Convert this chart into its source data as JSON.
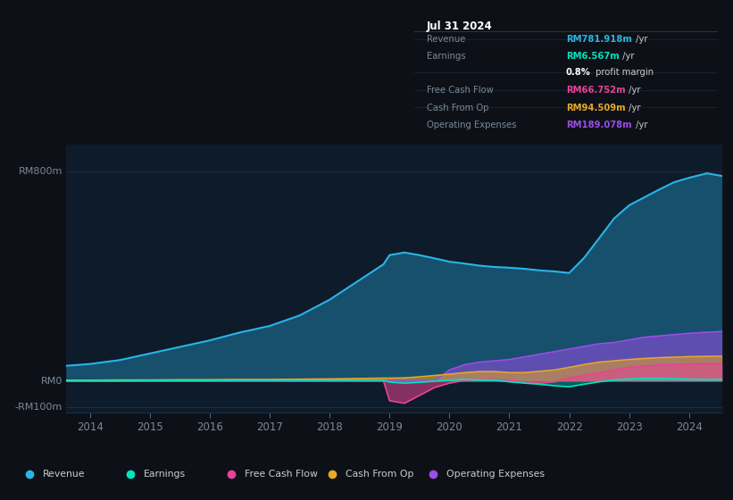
{
  "bg_color": "#0d1117",
  "plot_bg_color": "#0d1b2a",
  "grid_color": "#1e2d3d",
  "text_color": "#7a8899",
  "years": [
    2013.6,
    2014.0,
    2014.5,
    2015.0,
    2015.5,
    2016.0,
    2016.5,
    2017.0,
    2017.5,
    2018.0,
    2018.3,
    2018.6,
    2018.9,
    2019.0,
    2019.25,
    2019.5,
    2019.75,
    2020.0,
    2020.25,
    2020.5,
    2020.75,
    2021.0,
    2021.25,
    2021.5,
    2021.75,
    2022.0,
    2022.25,
    2022.5,
    2022.75,
    2023.0,
    2023.25,
    2023.5,
    2023.75,
    2024.0,
    2024.3,
    2024.55
  ],
  "revenue": [
    58,
    65,
    80,
    105,
    130,
    155,
    185,
    210,
    250,
    310,
    355,
    400,
    445,
    480,
    490,
    480,
    468,
    455,
    448,
    440,
    435,
    432,
    428,
    422,
    418,
    412,
    470,
    545,
    620,
    670,
    700,
    730,
    758,
    775,
    792,
    782
  ],
  "earnings": [
    1,
    1,
    1,
    2,
    2,
    2,
    3,
    3,
    3,
    3,
    3,
    3,
    3,
    -4,
    -8,
    -5,
    -1,
    3,
    6,
    4,
    3,
    -3,
    -8,
    -12,
    -18,
    -22,
    -12,
    -3,
    4,
    8,
    10,
    10,
    9,
    7,
    6,
    6.5
  ],
  "free_cash_flow": [
    0,
    0,
    0,
    0,
    0,
    0,
    0,
    0,
    0,
    0,
    0,
    0,
    0,
    -75,
    -85,
    -55,
    -25,
    -8,
    2,
    5,
    5,
    2,
    -3,
    -8,
    -3,
    12,
    22,
    32,
    42,
    52,
    57,
    62,
    63,
    65,
    67,
    66.7
  ],
  "cash_from_op": [
    3,
    3,
    4,
    4,
    5,
    5,
    6,
    6,
    7,
    8,
    9,
    10,
    11,
    11,
    12,
    16,
    21,
    26,
    32,
    36,
    36,
    32,
    32,
    37,
    42,
    52,
    63,
    72,
    77,
    82,
    86,
    89,
    91,
    93,
    94,
    94.5
  ],
  "operating_expenses": [
    0,
    0,
    0,
    0,
    0,
    0,
    0,
    0,
    0,
    0,
    0,
    0,
    0,
    0,
    0,
    0,
    0,
    42,
    62,
    72,
    77,
    82,
    92,
    102,
    112,
    122,
    132,
    142,
    147,
    157,
    167,
    172,
    177,
    182,
    186,
    189
  ],
  "revenue_color": "#29b5e8",
  "earnings_color": "#00e5c0",
  "free_cash_flow_color": "#e84393",
  "cash_from_op_color": "#e8a729",
  "operating_expenses_color": "#9b4de8",
  "ylim": [
    -120,
    900
  ],
  "y_ticks": [
    -100,
    0,
    800
  ],
  "y_tick_labels": [
    "-RM100m",
    "RM0",
    "RM800m"
  ],
  "x_ticks": [
    2014,
    2015,
    2016,
    2017,
    2018,
    2019,
    2020,
    2021,
    2022,
    2023,
    2024
  ],
  "info_box": {
    "date": "Jul 31 2024",
    "rows": [
      {
        "label": "Revenue",
        "value": "RM781.918m",
        "unit": " /yr",
        "color": "#29b5e8",
        "extra": false
      },
      {
        "label": "Earnings",
        "value": "RM6.567m",
        "unit": " /yr",
        "color": "#00e5c0",
        "extra": false
      },
      {
        "label": "",
        "value": "0.8%",
        "unit": " profit margin",
        "color": "#ffffff",
        "extra": true
      },
      {
        "label": "Free Cash Flow",
        "value": "RM66.752m",
        "unit": " /yr",
        "color": "#e84393",
        "extra": false
      },
      {
        "label": "Cash From Op",
        "value": "RM94.509m",
        "unit": " /yr",
        "color": "#e8a729",
        "extra": false
      },
      {
        "label": "Operating Expenses",
        "value": "RM189.078m",
        "unit": " /yr",
        "color": "#9b4de8",
        "extra": false
      }
    ]
  },
  "legend_items": [
    {
      "label": "Revenue",
      "color": "#29b5e8"
    },
    {
      "label": "Earnings",
      "color": "#00e5c0"
    },
    {
      "label": "Free Cash Flow",
      "color": "#e84393"
    },
    {
      "label": "Cash From Op",
      "color": "#e8a729"
    },
    {
      "label": "Operating Expenses",
      "color": "#9b4de8"
    }
  ]
}
